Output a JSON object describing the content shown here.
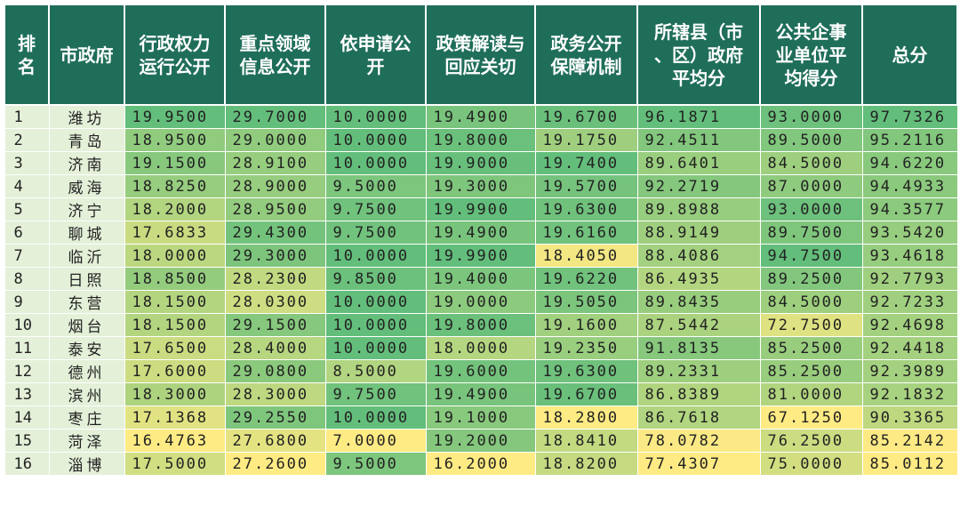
{
  "columns": [
    "排\n名",
    "市政府",
    "行政权力\n运行公开",
    "重点领域\n信息公开",
    "依申请公\n开",
    "政策解读与\n回应关切",
    "政务公开\n保障机制",
    "所辖县（市\n、区）政府\n平均分",
    "公共企事\n业单位平\n均得分",
    "总分"
  ],
  "rows": [
    {
      "rank": "1",
      "city": "潍坊",
      "scores": [
        "19.9500",
        "29.7000",
        "10.0000",
        "19.4900",
        "19.6700",
        "96.1871",
        "93.0000",
        "97.7326"
      ]
    },
    {
      "rank": "2",
      "city": "青岛",
      "scores": [
        "18.9500",
        "29.0000",
        "10.0000",
        "19.8000",
        "19.1750",
        "92.4511",
        "89.5000",
        "95.2116"
      ]
    },
    {
      "rank": "3",
      "city": "济南",
      "scores": [
        "19.1500",
        "28.9100",
        "10.0000",
        "19.9000",
        "19.7400",
        "89.6401",
        "84.5000",
        "94.6220"
      ]
    },
    {
      "rank": "4",
      "city": "威海",
      "scores": [
        "18.8250",
        "28.9000",
        "9.5000",
        "19.3000",
        "19.5700",
        "92.2719",
        "87.0000",
        "94.4933"
      ]
    },
    {
      "rank": "5",
      "city": "济宁",
      "scores": [
        "18.2000",
        "28.9500",
        "9.7500",
        "19.9900",
        "19.6300",
        "89.8988",
        "93.0000",
        "94.3577"
      ]
    },
    {
      "rank": "6",
      "city": "聊城",
      "scores": [
        "17.6833",
        "29.4300",
        "9.7500",
        "19.4900",
        "19.6160",
        "88.9149",
        "89.7500",
        "93.5420"
      ]
    },
    {
      "rank": "7",
      "city": "临沂",
      "scores": [
        "18.0000",
        "29.3000",
        "10.0000",
        "19.9900",
        "18.4050",
        "88.4086",
        "94.7500",
        "93.4618"
      ]
    },
    {
      "rank": "8",
      "city": "日照",
      "scores": [
        "18.8500",
        "28.2300",
        "9.8500",
        "19.4000",
        "19.6220",
        "86.4935",
        "89.2500",
        "92.7793"
      ]
    },
    {
      "rank": "9",
      "city": "东营",
      "scores": [
        "18.1500",
        "28.0300",
        "10.0000",
        "19.0000",
        "19.5050",
        "89.8435",
        "84.5000",
        "92.7233"
      ]
    },
    {
      "rank": "10",
      "city": "烟台",
      "scores": [
        "18.1500",
        "29.1500",
        "10.0000",
        "19.8000",
        "19.1600",
        "87.5442",
        "72.7500",
        "92.4698"
      ]
    },
    {
      "rank": "11",
      "city": "泰安",
      "scores": [
        "17.6500",
        "28.4000",
        "10.0000",
        "18.0000",
        "19.2350",
        "91.8135",
        "85.2500",
        "92.4418"
      ]
    },
    {
      "rank": "12",
      "city": "德州",
      "scores": [
        "17.6000",
        "29.0800",
        "8.5000",
        "19.6000",
        "19.6300",
        "89.2331",
        "85.2500",
        "92.3989"
      ]
    },
    {
      "rank": "13",
      "city": "滨州",
      "scores": [
        "18.3000",
        "28.3000",
        "9.7500",
        "19.4900",
        "19.6700",
        "86.8389",
        "81.0000",
        "92.1832"
      ]
    },
    {
      "rank": "14",
      "city": "枣庄",
      "scores": [
        "17.1368",
        "29.2550",
        "10.0000",
        "19.1000",
        "18.2800",
        "86.7618",
        "67.1250",
        "90.3365"
      ]
    },
    {
      "rank": "15",
      "city": "菏泽",
      "scores": [
        "16.4763",
        "27.6800",
        "7.0000",
        "19.2000",
        "18.8410",
        "78.0782",
        "76.2500",
        "85.2142"
      ]
    },
    {
      "rank": "16",
      "city": "淄博",
      "scores": [
        "17.5000",
        "27.2600",
        "9.5000",
        "16.2000",
        "18.8200",
        "77.4307",
        "75.0000",
        "85.0112"
      ]
    }
  ],
  "colors": {
    "header_bg": "#1f6e5a",
    "header_text": "#ffffff",
    "scale_high": "#63be7b",
    "scale_low": "#ffeb84",
    "rank_city_bg": "#e4f0d8"
  }
}
